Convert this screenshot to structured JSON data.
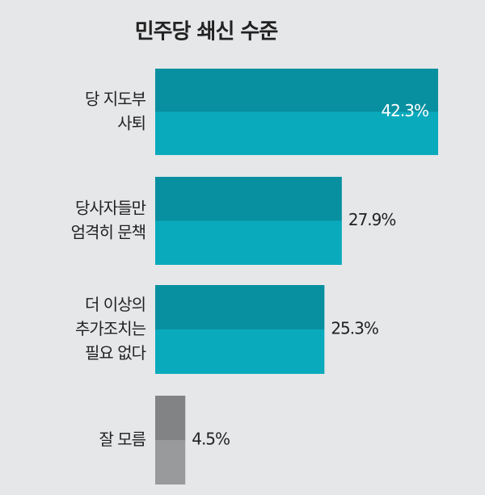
{
  "chart_data": {
    "type": "hbar",
    "title": "민주당 쇄신 수준",
    "categories": [
      "당 지도부\n사퇴",
      "당사자들만\n엄격히 문책",
      "더 이상의\n추가조치는\n필요 없다",
      "잘 모름"
    ],
    "values": [
      42.3,
      27.9,
      25.3,
      4.5
    ],
    "value_labels": [
      "42.3%",
      "27.9%",
      "25.3%",
      "4.5%"
    ],
    "colors": [
      "#0aaabd",
      "#0aaabd",
      "#0aaabd",
      "#999a9c"
    ]
  }
}
